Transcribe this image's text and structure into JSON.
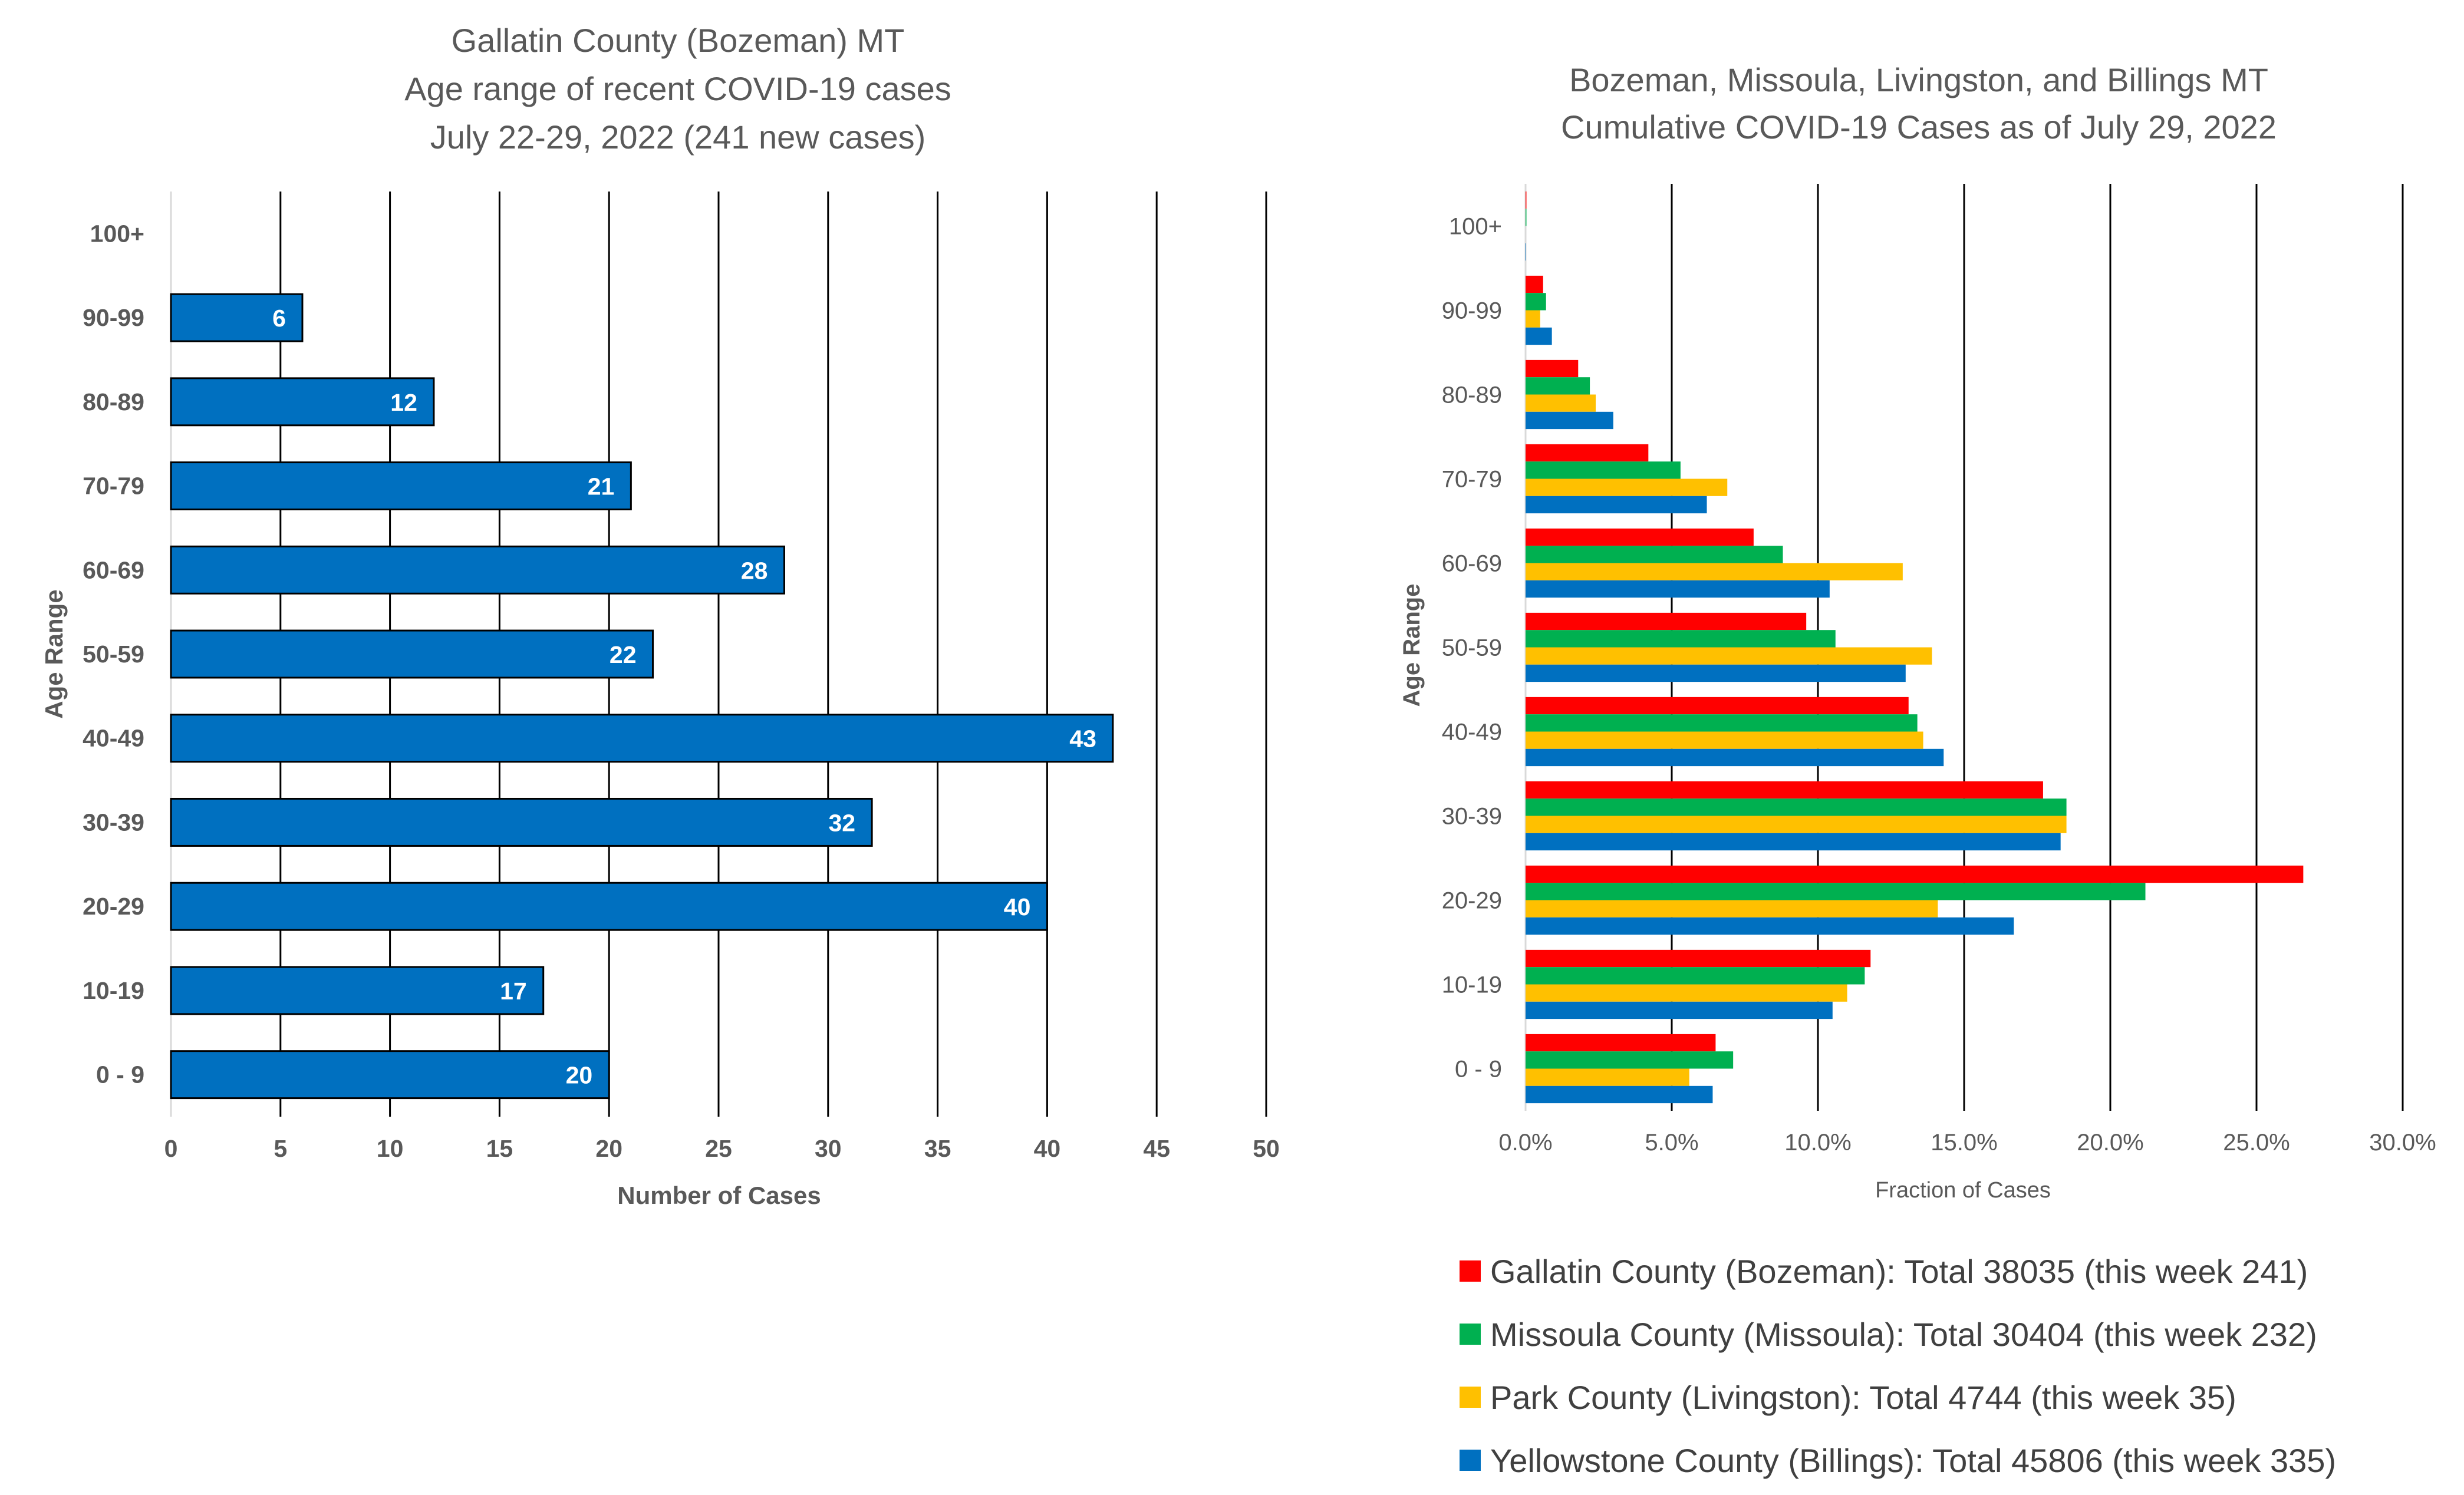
{
  "chart_data": [
    {
      "type": "bar",
      "orientation": "horizontal",
      "title_lines": [
        "Gallatin County (Bozeman) MT",
        "Age range of recent COVID-19 cases",
        "July 22-29, 2022 (241 new cases)"
      ],
      "categories": [
        "0 - 9",
        "10-19",
        "20-29",
        "30-39",
        "40-49",
        "50-59",
        "60-69",
        "70-79",
        "80-89",
        "90-99",
        "100+"
      ],
      "values": [
        20,
        17,
        40,
        32,
        43,
        22,
        28,
        21,
        12,
        6,
        0
      ],
      "data_labels": [
        "20",
        "17",
        "40",
        "32",
        "43",
        "22",
        "28",
        "21",
        "12",
        "6",
        ""
      ],
      "xlabel": "Number of Cases",
      "ylabel": "Age Range",
      "xlim": [
        0,
        50
      ],
      "xticks": [
        "0",
        "5",
        "10",
        "15",
        "20",
        "25",
        "30",
        "35",
        "40",
        "45",
        "50"
      ],
      "grid": "vertical",
      "bar_color": "#0070C0"
    },
    {
      "type": "bar",
      "orientation": "horizontal",
      "title_lines": [
        "Bozeman, Missoula, Livingston, and Billings MT",
        "Cumulative COVID-19 Cases as of July 29, 2022"
      ],
      "categories": [
        "0 - 9",
        "10-19",
        "20-29",
        "30-39",
        "40-49",
        "50-59",
        "60-69",
        "70-79",
        "80-89",
        "90-99",
        "100+"
      ],
      "series": [
        {
          "name": "Gallatin County (Bozeman): Total 38035 (this week 241)",
          "color": "#FF0000",
          "values": [
            0.065,
            0.118,
            0.266,
            0.177,
            0.131,
            0.096,
            0.078,
            0.042,
            0.018,
            0.006,
            0.0003
          ]
        },
        {
          "name": "Missoula County (Missoula): Total 30404 (this week 232)",
          "color": "#00B050",
          "values": [
            0.071,
            0.116,
            0.212,
            0.185,
            0.134,
            0.106,
            0.088,
            0.053,
            0.022,
            0.007,
            0.0003
          ]
        },
        {
          "name": "Park County (Livingston): Total 4744 (this week 35)",
          "color": "#FFC000",
          "values": [
            0.056,
            0.11,
            0.141,
            0.185,
            0.136,
            0.139,
            0.129,
            0.069,
            0.024,
            0.005,
            0.0
          ]
        },
        {
          "name": "Yellowstone County (Billings): Total 45806 (this week 335)",
          "color": "#0070C0",
          "values": [
            0.064,
            0.105,
            0.167,
            0.183,
            0.143,
            0.13,
            0.104,
            0.062,
            0.03,
            0.009,
            0.0002
          ]
        }
      ],
      "xlabel": "Fraction of Cases",
      "ylabel": "Age Range",
      "xlim": [
        0,
        0.3
      ],
      "xticks": [
        "0.0%",
        "5.0%",
        "10.0%",
        "15.0%",
        "20.0%",
        "25.0%",
        "30.0%"
      ],
      "grid": "vertical",
      "legend_position": "bottom"
    }
  ]
}
